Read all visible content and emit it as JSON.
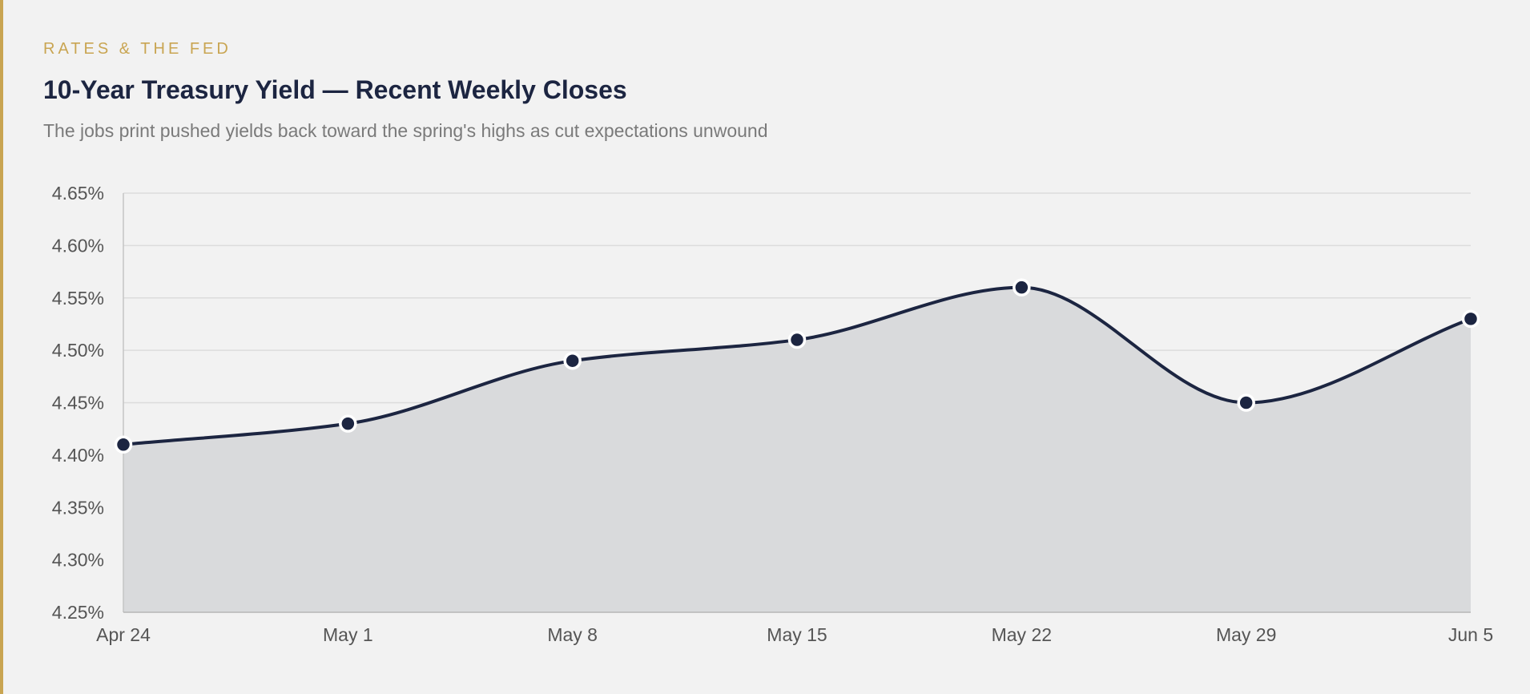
{
  "header": {
    "kicker": "RATES & THE FED",
    "title": "10-Year Treasury Yield — Recent Weekly Closes",
    "subtitle": "The jobs print pushed yields back toward the spring's highs as cut expectations unwound"
  },
  "colors": {
    "accent": "#c9a552",
    "line": "#1c2541",
    "area": "#d9dadc",
    "grid": "#dcdcdc",
    "background": "#f2f2f2"
  },
  "chart_data": {
    "type": "area",
    "categories": [
      "Apr 24",
      "May 1",
      "May 8",
      "May 15",
      "May 22",
      "May 29",
      "Jun 5"
    ],
    "series": [
      {
        "values": [
          4.41,
          4.43,
          4.49,
          4.51,
          4.56,
          4.45,
          4.53
        ]
      }
    ],
    "ylim": [
      4.25,
      4.65
    ],
    "yticks": [
      4.25,
      4.3,
      4.35,
      4.4,
      4.45,
      4.5,
      4.55,
      4.6,
      4.65
    ],
    "ytick_labels": [
      "4.25%",
      "4.30%",
      "4.35%",
      "4.40%",
      "4.45%",
      "4.50%",
      "4.55%",
      "4.60%",
      "4.65%"
    ],
    "grid": true,
    "smooth": true
  }
}
